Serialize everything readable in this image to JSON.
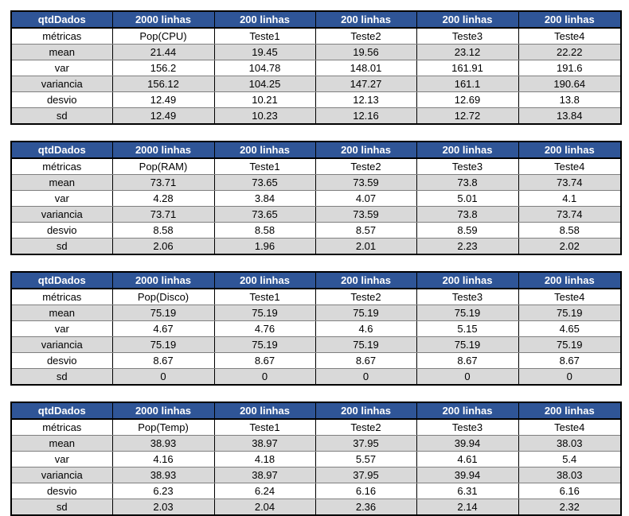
{
  "tables": [
    {
      "header": [
        "qtdDados",
        "2000 linhas",
        "200 linhas",
        "200 linhas",
        "200 linhas",
        "200 linhas"
      ],
      "rows": [
        [
          "métricas",
          "Pop(CPU)",
          "Teste1",
          "Teste2",
          "Teste3",
          "Teste4"
        ],
        [
          "mean",
          "21.44",
          "19.45",
          "19.56",
          "23.12",
          "22.22"
        ],
        [
          "var",
          "156.2",
          "104.78",
          "148.01",
          "161.91",
          "191.6"
        ],
        [
          "variancia",
          "156.12",
          "104.25",
          "147.27",
          "161.1",
          "190.64"
        ],
        [
          "desvio",
          "12.49",
          "10.21",
          "12.13",
          "12.69",
          "13.8"
        ],
        [
          "sd",
          "12.49",
          "10.23",
          "12.16",
          "12.72",
          "13.84"
        ]
      ]
    },
    {
      "header": [
        "qtdDados",
        "2000 linhas",
        "200 linhas",
        "200 linhas",
        "200 linhas",
        "200 linhas"
      ],
      "rows": [
        [
          "métricas",
          "Pop(RAM)",
          "Teste1",
          "Teste2",
          "Teste3",
          "Teste4"
        ],
        [
          "mean",
          "73.71",
          "73.65",
          "73.59",
          "73.8",
          "73.74"
        ],
        [
          "var",
          "4.28",
          "3.84",
          "4.07",
          "5.01",
          "4.1"
        ],
        [
          "variancia",
          "73.71",
          "73.65",
          "73.59",
          "73.8",
          "73.74"
        ],
        [
          "desvio",
          "8.58",
          "8.58",
          "8.57",
          "8.59",
          "8.58"
        ],
        [
          "sd",
          "2.06",
          "1.96",
          "2.01",
          "2.23",
          "2.02"
        ]
      ]
    },
    {
      "header": [
        "qtdDados",
        "2000 linhas",
        "200 linhas",
        "200 linhas",
        "200 linhas",
        "200 linhas"
      ],
      "rows": [
        [
          "métricas",
          "Pop(Disco)",
          "Teste1",
          "Teste2",
          "Teste3",
          "Teste4"
        ],
        [
          "mean",
          "75.19",
          "75.19",
          "75.19",
          "75.19",
          "75.19"
        ],
        [
          "var",
          "4.67",
          "4.76",
          "4.6",
          "5.15",
          "4.65"
        ],
        [
          "variancia",
          "75.19",
          "75.19",
          "75.19",
          "75.19",
          "75.19"
        ],
        [
          "desvio",
          "8.67",
          "8.67",
          "8.67",
          "8.67",
          "8.67"
        ],
        [
          "sd",
          "0",
          "0",
          "0",
          "0",
          "0"
        ]
      ]
    },
    {
      "header": [
        "qtdDados",
        "2000 linhas",
        "200 linhas",
        "200 linhas",
        "200 linhas",
        "200 linhas"
      ],
      "rows": [
        [
          "métricas",
          "Pop(Temp)",
          "Teste1",
          "Teste2",
          "Teste3",
          "Teste4"
        ],
        [
          "mean",
          "38.93",
          "38.97",
          "37.95",
          "39.94",
          "38.03"
        ],
        [
          "var",
          "4.16",
          "4.18",
          "5.57",
          "4.61",
          "5.4"
        ],
        [
          "variancia",
          "38.93",
          "38.97",
          "37.95",
          "39.94",
          "38.03"
        ],
        [
          "desvio",
          "6.23",
          "6.24",
          "6.16",
          "6.31",
          "6.16"
        ],
        [
          "sd",
          "2.03",
          "2.04",
          "2.36",
          "2.14",
          "2.32"
        ]
      ]
    }
  ],
  "colors": {
    "header_bg": "#2f5597",
    "header_text": "#ffffff",
    "band_row": "#d9d9d9"
  }
}
